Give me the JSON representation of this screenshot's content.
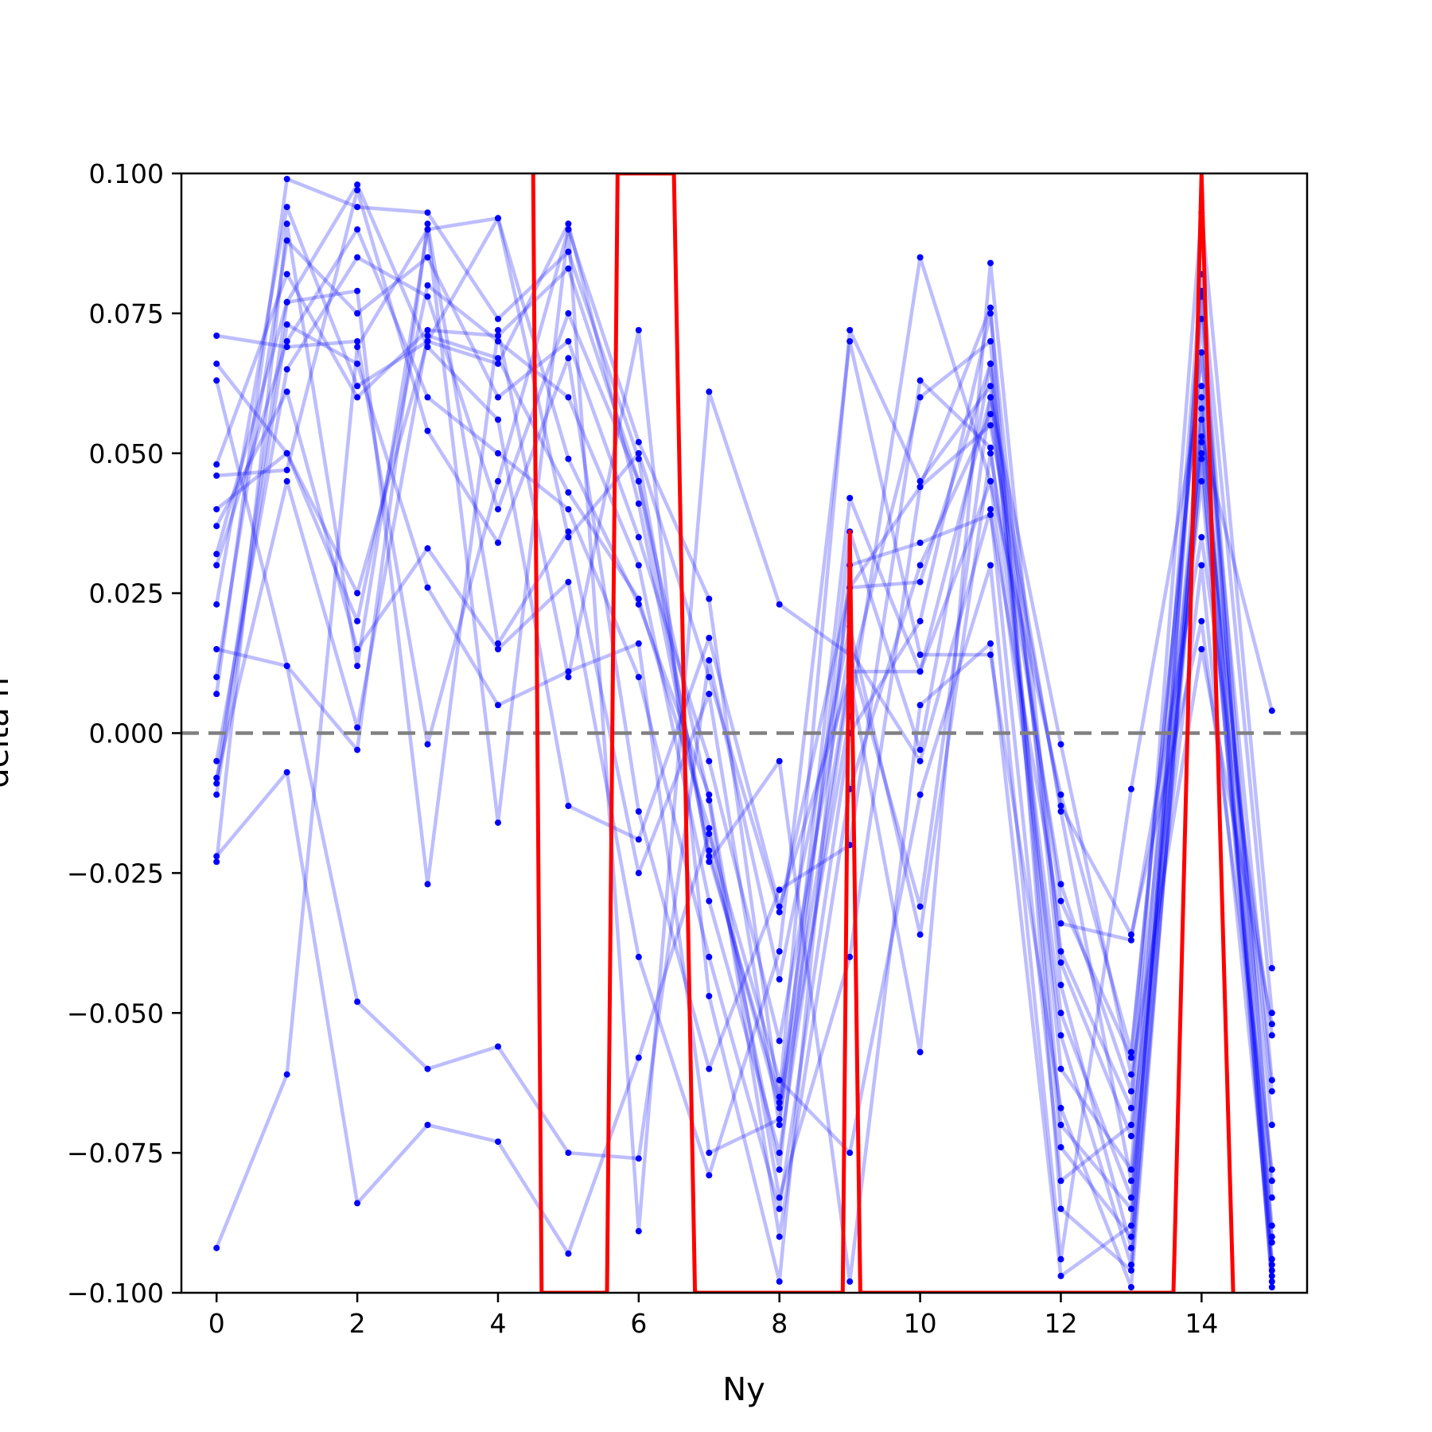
{
  "chart_data": {
    "type": "line",
    "title": "",
    "xlabel": "Ny",
    "ylabel": "delta n",
    "xlim": [
      -0.5,
      15.5
    ],
    "ylim": [
      -0.1,
      0.1
    ],
    "xticks": [
      0,
      2,
      4,
      6,
      8,
      10,
      12,
      14
    ],
    "xtick_labels": [
      "0",
      "2",
      "4",
      "6",
      "8",
      "10",
      "12",
      "14"
    ],
    "yticks": [
      0.1,
      0.075,
      0.05,
      0.025,
      0.0,
      -0.025,
      -0.05,
      -0.075,
      -0.1
    ],
    "ytick_labels": [
      "0.100",
      "0.075",
      "0.050",
      "0.025",
      "0.000",
      "−0.025",
      "−0.050",
      "−0.075",
      "−0.100"
    ],
    "reference_line": {
      "y": 0.0,
      "style": "dashed",
      "color": "#808080"
    },
    "trace_color": "#0000ff",
    "highlight_color": "#ff0000",
    "grid": false,
    "legend": "none",
    "traces": [
      {
        "x": [
          0,
          1,
          2,
          3,
          4,
          5,
          6,
          7,
          8,
          9,
          10,
          11,
          12,
          13,
          14,
          15
        ],
        "y": [
          0.071,
          0.069,
          0.07,
          -0.002,
          0.045,
          0.09,
          0.052,
          0.024,
          -0.066,
          0.026,
          0.027,
          0.066,
          -0.074,
          -0.09,
          0.078,
          -0.096
        ]
      },
      {
        "x": [
          0,
          1,
          2,
          3,
          4,
          5,
          6,
          7,
          8,
          9,
          10,
          11,
          12,
          13,
          14,
          15
        ],
        "y": [
          0.066,
          0.05,
          0.025,
          0.07,
          0.092,
          0.049,
          0.023,
          -0.011,
          -0.083,
          -0.04,
          0.044,
          0.076,
          -0.085,
          -0.096,
          0.056,
          -0.07
        ]
      },
      {
        "x": [
          0,
          1,
          2,
          3,
          4,
          5,
          6,
          7,
          8,
          9,
          10,
          11,
          12,
          13,
          14,
          15
        ],
        "y": [
          0.063,
          0.012,
          -0.003,
          0.091,
          0.016,
          0.036,
          -0.025,
          0.007,
          -0.07,
          0.042,
          0.011,
          0.06,
          -0.002,
          -0.061,
          0.015,
          -0.052
        ]
      },
      {
        "x": [
          0,
          1,
          2,
          3,
          4,
          5,
          6,
          7,
          8,
          9,
          10,
          11,
          12,
          13,
          14,
          15
        ],
        "y": [
          0.048,
          0.082,
          0.06,
          0.072,
          0.071,
          0.083,
          0.045,
          -0.021,
          -0.067,
          0.011,
          0.011,
          0.045,
          -0.011,
          -0.057,
          0.068,
          -0.062
        ]
      },
      {
        "x": [
          0,
          1,
          2,
          3,
          4,
          5,
          6,
          7,
          8,
          9,
          10,
          11,
          12,
          13,
          14,
          15
        ],
        "y": [
          0.046,
          0.047,
          0.097,
          0.054,
          0.034,
          0.067,
          -0.014,
          -0.06,
          -0.028,
          -0.02,
          0.063,
          0.051,
          -0.05,
          -0.083,
          0.049,
          -0.09
        ]
      },
      {
        "x": [
          0,
          1,
          2,
          3,
          4,
          5,
          6,
          7,
          8,
          9,
          10,
          11,
          12,
          13,
          14,
          15
        ],
        "y": [
          0.037,
          0.061,
          0.015,
          0.033,
          0.015,
          0.027,
          -0.04,
          -0.079,
          -0.039,
          0.07,
          0.014,
          0.014,
          -0.067,
          -0.099,
          0.058,
          -0.098
        ]
      },
      {
        "x": [
          0,
          1,
          2,
          3,
          4,
          5,
          6,
          7,
          8,
          9,
          10,
          11,
          12,
          13,
          14,
          15
        ],
        "y": [
          0.032,
          0.077,
          0.079,
          -0.027,
          0.072,
          0.01,
          0.072,
          -0.047,
          -0.098,
          0.03,
          0.034,
          0.039,
          -0.034,
          -0.037,
          0.035,
          -0.054
        ]
      },
      {
        "x": [
          0,
          1,
          2,
          3,
          4,
          5,
          6,
          7,
          8,
          9,
          10,
          11,
          12,
          13,
          14,
          15
        ],
        "y": [
          0.023,
          0.094,
          0.062,
          0.07,
          0.066,
          0.091,
          0.041,
          -0.022,
          -0.065,
          0.072,
          0.045,
          0.062,
          -0.06,
          -0.078,
          0.082,
          -0.05
        ]
      },
      {
        "x": [
          0,
          1,
          2,
          3,
          4,
          5,
          6,
          7,
          8,
          9,
          10,
          11,
          12,
          13,
          14,
          15
        ],
        "y": [
          0.015,
          0.012,
          -0.048,
          -0.06,
          -0.056,
          -0.075,
          -0.076,
          0.013,
          -0.044,
          0.019,
          -0.036,
          0.05,
          -0.027,
          -0.064,
          0.052,
          -0.064
        ]
      },
      {
        "x": [
          0,
          1,
          2,
          3,
          4,
          5,
          6,
          7,
          8,
          9,
          10,
          11,
          12,
          13,
          14,
          15
        ],
        "y": [
          0.007,
          0.099,
          0.094,
          0.093,
          0.074,
          0.086,
          0.049,
          -0.023,
          -0.005,
          -0.098,
          0.005,
          0.016,
          -0.097,
          -0.088,
          0.074,
          -0.091
        ]
      },
      {
        "x": [
          0,
          1,
          2,
          3,
          4,
          5,
          6,
          7,
          8,
          9,
          10,
          11,
          12,
          13,
          14,
          15
        ],
        "y": [
          -0.008,
          0.045,
          0.001,
          0.071,
          0.067,
          0.043,
          0.024,
          -0.017,
          -0.078,
          0.036,
          -0.003,
          0.066,
          -0.039,
          -0.067,
          0.093,
          -0.042
        ]
      },
      {
        "x": [
          0,
          1,
          2,
          3,
          4,
          5,
          6,
          7,
          8,
          9,
          10,
          11,
          12,
          13,
          14,
          15
        ],
        "y": [
          -0.009,
          0.077,
          0.098,
          0.069,
          0.056,
          -0.013,
          -0.019,
          0.017,
          -0.031,
          0.01,
          -0.057,
          0.084,
          -0.041,
          -0.072,
          0.03,
          -0.094
        ]
      },
      {
        "x": [
          0,
          1,
          2,
          3,
          4,
          5,
          6,
          7,
          8,
          9,
          10,
          11,
          12,
          13,
          14,
          15
        ],
        "y": [
          -0.011,
          0.073,
          0.066,
          0.026,
          0.005,
          0.011,
          0.016,
          -0.075,
          -0.069,
          0.003,
          0.085,
          0.045,
          -0.054,
          -0.095,
          0.079,
          -0.083
        ]
      },
      {
        "x": [
          0,
          1,
          2,
          3,
          4,
          5,
          6,
          7,
          8,
          9,
          10,
          11,
          12,
          13,
          14,
          15
        ],
        "y": [
          -0.022,
          -0.007,
          -0.084,
          -0.07,
          -0.073,
          -0.093,
          -0.058,
          -0.018,
          -0.062,
          -0.075,
          -0.011,
          0.03,
          -0.094,
          -0.01,
          0.062,
          -0.099
        ]
      },
      {
        "x": [
          0,
          1,
          2,
          3,
          4,
          5,
          6,
          7,
          8,
          9,
          10,
          11,
          12,
          13,
          14,
          15
        ],
        "y": [
          -0.023,
          0.091,
          0.012,
          0.09,
          0.092,
          0.035,
          0.05,
          0.01,
          -0.032,
          0.026,
          0.044,
          0.055,
          -0.013,
          -0.036,
          0.02,
          -0.078
        ]
      },
      {
        "x": [
          0,
          1,
          2,
          3,
          4,
          5,
          6,
          7,
          8,
          9,
          10,
          11,
          12,
          13,
          14,
          15
        ],
        "y": [
          -0.092,
          -0.061,
          0.069,
          0.09,
          -0.016,
          0.09,
          -0.089,
          0.061,
          0.023,
          0.014,
          -0.031,
          0.06,
          -0.014,
          -0.08,
          0.053,
          0.004
        ]
      },
      {
        "x": [
          0,
          1,
          2,
          3,
          4,
          5,
          6,
          7,
          8,
          9,
          10,
          11,
          12,
          13,
          14,
          15
        ],
        "y": [
          0.04,
          0.05,
          0.02,
          0.08,
          0.07,
          0.06,
          0.03,
          -0.03,
          -0.075,
          0.01,
          0.06,
          0.07,
          -0.07,
          -0.085,
          0.06,
          -0.095
        ]
      },
      {
        "x": [
          0,
          1,
          2,
          3,
          4,
          5,
          6,
          7,
          8,
          9,
          10,
          11,
          12,
          13,
          14,
          15
        ],
        "y": [
          0.03,
          0.07,
          0.09,
          0.06,
          0.05,
          0.04,
          0.01,
          -0.04,
          -0.085,
          0.0,
          0.02,
          0.075,
          -0.045,
          -0.092,
          0.05,
          -0.097
        ]
      },
      {
        "x": [
          0,
          1,
          2,
          3,
          4,
          5,
          6,
          7,
          8,
          9,
          10,
          11,
          12,
          13,
          14,
          15
        ],
        "y": [
          0.01,
          0.088,
          0.075,
          0.085,
          0.06,
          0.07,
          0.035,
          -0.005,
          -0.055,
          0.015,
          -0.005,
          0.04,
          -0.08,
          -0.07,
          0.045,
          -0.088
        ]
      },
      {
        "x": [
          0,
          1,
          2,
          3,
          4,
          5,
          6,
          7,
          8,
          9,
          10,
          11,
          12,
          13,
          14,
          15
        ],
        "y": [
          -0.005,
          0.065,
          0.085,
          0.078,
          0.04,
          0.075,
          0.045,
          -0.012,
          -0.09,
          -0.01,
          0.03,
          0.057,
          -0.03,
          -0.058,
          0.068,
          -0.08
        ]
      }
    ],
    "highlight_line": {
      "x": [
        4.5,
        4.62,
        5.55,
        5.7,
        6.5,
        6.8,
        8.9,
        9.0,
        9.15,
        13.6,
        14.0,
        14.45
      ],
      "y": [
        0.1,
        -0.1,
        -0.1,
        0.1,
        0.1,
        -0.1,
        -0.1,
        0.036,
        -0.1,
        -0.1,
        0.1,
        -0.1
      ]
    }
  }
}
